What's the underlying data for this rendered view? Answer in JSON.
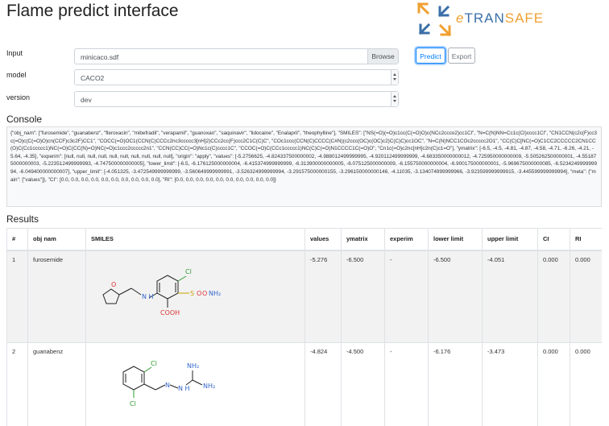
{
  "page": {
    "title": "Flame predict interface"
  },
  "logo": {
    "prefix": "e",
    "mid": "TRAN",
    "suffix": "SAFE"
  },
  "form": {
    "input_label": "Input",
    "input_value": "minicaco.sdf",
    "browse_label": "Browse",
    "model_label": "model",
    "model_value": "CACO2",
    "version_label": "version",
    "version_value": "dev"
  },
  "buttons": {
    "predict": "Predict",
    "export": "Export"
  },
  "console": {
    "title": "Console",
    "text": "{\"obj_nam\": [\"furosemide\", \"guanabenz\", \"fleroxacin\", \"mibefradil\", \"verapamil\", \"guanoxan\", \"saquinavir\", \"lidocaine\", \"Enalapril\", \"theophylline\"], \"SMILES\": [\"NS(=O)(=O)c1cc(C(=O)O)c(NCc2ccco2)cc1Cl\", \"N=C(N)NN=Cc1c(Cl)cccc1Cl\", \"CN1CCN(c2c(F)cc3c(=O)c(C(=O)O)cn(CCF)c3c2F)CC1\", \"COCC(=O)OC1(CCN(C)CCCc2nc3ccccc3[nH]2)CCc2cc(F)ccc2C1C(C)C\", \"COc1ccc(CCN(C)CCCC(C#N)(c2ccc(OC)c(OC)c2)C(C)C)cc1OC\", \"N=C(N)NCC1COc2ccccc2O1\", \"CC(C)C[NC(=O)C1CC2CCCCC2CN1CC(O)C(Cc1ccccc1)NC(=O)C(CC(N)=O)NC(=O)c1ccc2ccccc2n1\", \"CCN(CC)CC(=O)Nc1c(C)cccc1C\", \"CCOC(=O)C(CCc1ccccc1)NC(C)C(=O)N1CCCC1C(=O)O\", \"Cn1c(=O)c2nc[nH]c2n(C)c1=O\"], \"ymatrix\": [-6.5, -4.5, -4.81, -4.87, -4.58, -4.71, -6.26, -4.21, -5.64, -4.35], \"experim\": [null, null, null, null, null, null, null, null, null, null], \"origin\": \"apply\", \"values\": [-5.2756625, -4.824337500000002, -4.988012499999995, -4.920112499999999, -4.683350000000012, -4.725950000000009, -5.505262500000001, -4.551875000000003, -5.223512499999993, -4.747500000000005], \"lower_limit\": [-6.5, -6.176125000000004, -6.415374999999999, -6.313900000000005, -6.075125000000009, -6.155750000000004, -6.900175000000001, -5.969675000000085, -6.523424999999994, -6.049400000000007], \"upper_limit\": [-4.051325, -3.472549999999999, -3.560649999999991, -3.526324999999994, -3.291575000000155, -3.296150000000146, -4.11035, -3.134074999999966, -3.923599999999915, -3.445599999999994], \"meta\": {\"main\": [\"values\"]}, \"CI\": [0.0, 0.0, 0.0, 0.0, 0.0, 0.0, 0.0, 0.0, 0.0, 0.0], \"RI\": [0.0, 0.0, 0.0, 0.0, 0.0, 0.0, 0.0, 0.0, 0.0, 0.0]}"
  },
  "results": {
    "title": "Results",
    "headers": [
      "#",
      "obj nam",
      "SMILES",
      "values",
      "ymatrix",
      "experim",
      "lower limit",
      "upper limit",
      "CI",
      "RI"
    ],
    "rows": [
      {
        "num": "1",
        "name": "furosemide",
        "atoms": {
          "o": "O",
          "cl": "Cl",
          "nh": "N\nH",
          "so": "S",
          "o1": "O",
          "o2": "O",
          "nh2": "NH₂",
          "cooh": "COOH"
        },
        "values": "-5.276",
        "ymatrix": "-6.500",
        "experim": "-",
        "lower": "-6.500",
        "upper": "-4.051",
        "ci": "0.000",
        "ri": "0.000"
      },
      {
        "num": "2",
        "name": "guanabenz",
        "atoms": {
          "cl1": "Cl",
          "cl2": "Cl",
          "n1": "N",
          "nh": "N\nH",
          "nh2a": "NH₂",
          "nh2b": "NH₂"
        },
        "values": "-4.824",
        "ymatrix": "-4.500",
        "experim": "-",
        "lower": "-6.176",
        "upper": "-3.473",
        "ci": "0.000",
        "ri": "0.000"
      }
    ]
  }
}
